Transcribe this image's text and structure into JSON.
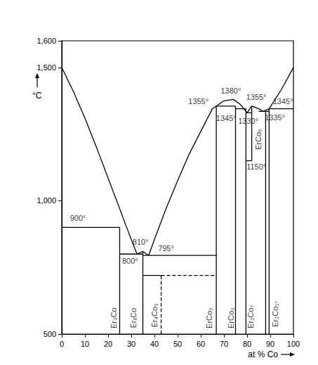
{
  "chart_data": {
    "type": "line",
    "xlabel": "at % Co",
    "ylabel": "°C",
    "xlim": [
      0,
      100
    ],
    "xticks": [
      0,
      10,
      20,
      30,
      40,
      50,
      60,
      70,
      80,
      90,
      100
    ],
    "ylim": [
      500,
      1600
    ],
    "yticks": [
      500,
      1000,
      1500
    ],
    "grid": false,
    "color": "#000000",
    "series": [
      {
        "line_style": "solid",
        "x": [
          0,
          5,
          10,
          15,
          20,
          25,
          28,
          30,
          32.5
        ],
        "values": [
          1500,
          1410,
          1310,
          1200,
          1085,
          970,
          900,
          855,
          800
        ]
      },
      {
        "line_style": "solid",
        "x": [
          32.5,
          35,
          37.5
        ],
        "values": [
          800,
          810,
          795
        ]
      },
      {
        "line_style": "solid",
        "x": [
          37.5,
          40,
          45,
          50,
          55,
          60,
          65,
          70,
          74,
          77,
          80
        ],
        "values": [
          795,
          855,
          970,
          1075,
          1175,
          1260,
          1345,
          1375,
          1380,
          1362,
          1330
        ]
      },
      {
        "line_style": "solid",
        "x": [
          80,
          82,
          85,
          87,
          89.5,
          95,
          100
        ],
        "values": [
          1330,
          1355,
          1345,
          1335,
          1345,
          1420,
          1500
        ]
      },
      {
        "line_style": "solid",
        "x": [
          0,
          25
        ],
        "values": [
          900,
          900
        ]
      },
      {
        "line_style": "solid",
        "x": [
          25,
          25
        ],
        "values": [
          500,
          900
        ]
      },
      {
        "line_style": "solid",
        "x": [
          25,
          35
        ],
        "values": [
          800,
          800
        ]
      },
      {
        "line_style": "solid",
        "x": [
          35,
          35
        ],
        "values": [
          500,
          810
        ]
      },
      {
        "line_style": "solid",
        "x": [
          35,
          66.7
        ],
        "values": [
          795,
          795
        ]
      },
      {
        "line_style": "solid",
        "x": [
          35,
          42.9
        ],
        "values": [
          720,
          720
        ]
      },
      {
        "line_style": "solid",
        "x": [
          66.7,
          66.7
        ],
        "values": [
          500,
          1355
        ]
      },
      {
        "line_style": "solid",
        "x": [
          66.7,
          75
        ],
        "values": [
          1355,
          1355
        ]
      },
      {
        "line_style": "solid",
        "x": [
          75,
          75
        ],
        "values": [
          500,
          1355
        ]
      },
      {
        "line_style": "solid",
        "x": [
          75,
          79.5
        ],
        "values": [
          1345,
          1345
        ]
      },
      {
        "line_style": "solid",
        "x": [
          79.5,
          79.5
        ],
        "values": [
          500,
          1345
        ]
      },
      {
        "line_style": "solid",
        "x": [
          79.5,
          82
        ],
        "values": [
          1330,
          1330
        ]
      },
      {
        "line_style": "solid",
        "x": [
          79.5,
          82
        ],
        "values": [
          1150,
          1150
        ]
      },
      {
        "line_style": "solid",
        "x": [
          82,
          82
        ],
        "values": [
          1150,
          1355
        ]
      },
      {
        "line_style": "solid",
        "x": [
          88,
          88
        ],
        "values": [
          500,
          1335
        ]
      },
      {
        "line_style": "solid",
        "x": [
          85,
          89.5
        ],
        "values": [
          1335,
          1335
        ]
      },
      {
        "line_style": "solid",
        "x": [
          89.5,
          89.5
        ],
        "values": [
          500,
          1345
        ]
      },
      {
        "line_style": "solid",
        "x": [
          89.5,
          100
        ],
        "values": [
          1345,
          1345
        ]
      },
      {
        "line_style": "dashed",
        "x": [
          42.9,
          42.9
        ],
        "values": [
          500,
          720
        ]
      },
      {
        "line_style": "dashed",
        "x": [
          42.9,
          66.7
        ],
        "values": [
          720,
          720
        ]
      }
    ],
    "annotations": [
      {
        "text": "900°",
        "x": 7,
        "y": 935
      },
      {
        "text": "810°",
        "x": 34,
        "y": 845
      },
      {
        "text": "800°",
        "x": 29.5,
        "y": 775
      },
      {
        "text": "795°",
        "x": 45,
        "y": 822
      },
      {
        "text": "1355°",
        "x": 59,
        "y": 1372
      },
      {
        "text": "1380°",
        "x": 73,
        "y": 1412
      },
      {
        "text": "1345°",
        "x": 71,
        "y": 1310
      },
      {
        "text": "1355°",
        "x": 84,
        "y": 1390
      },
      {
        "text": "1330°",
        "x": 80.5,
        "y": 1298
      },
      {
        "text": "1345°",
        "x": 95.5,
        "y": 1372
      },
      {
        "text": "1335°",
        "x": 92,
        "y": 1312
      },
      {
        "text": "1150°",
        "x": 84,
        "y": 1128
      }
    ],
    "phase_labels": [
      {
        "text": "Er₃Co",
        "x": 22.5,
        "y": 560
      },
      {
        "text": "ErₓCo",
        "x": 31,
        "y": 560
      },
      {
        "text": "Er₄Co₃",
        "x": 40,
        "y": 570
      },
      {
        "text": "ErCo₂",
        "x": 63.5,
        "y": 560
      },
      {
        "text": "ErCo₃",
        "x": 73,
        "y": 560
      },
      {
        "text": "Er₂Co₇",
        "x": 81.5,
        "y": 565
      },
      {
        "text": "ErCo₆",
        "x": 84.8,
        "y": 1230
      },
      {
        "text": "Er₂Co₁₇",
        "x": 92,
        "y": 575
      }
    ]
  }
}
